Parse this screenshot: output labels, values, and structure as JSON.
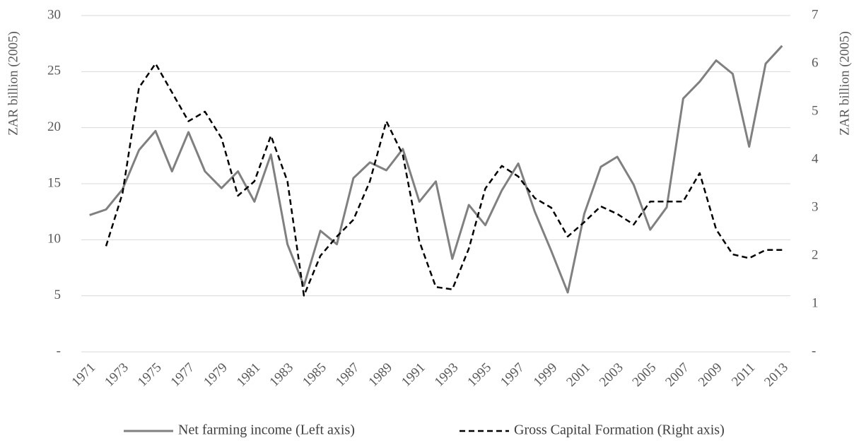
{
  "chart_data": {
    "type": "line",
    "y_label": "ZAR billion (2005)",
    "y2_label": "ZAR billion (2005)",
    "categories": [
      "1971",
      null,
      "1973",
      null,
      "1975",
      null,
      "1977",
      null,
      "1979",
      null,
      "1981",
      null,
      "1983",
      null,
      "1985",
      null,
      "1987",
      null,
      "1989",
      null,
      "1991",
      null,
      "1993",
      null,
      "1995",
      null,
      "1997",
      null,
      "1999",
      null,
      "2001",
      null,
      "2003",
      null,
      "2005",
      null,
      "2007",
      null,
      "2009",
      null,
      "2011",
      null,
      "2013"
    ],
    "series": [
      {
        "name": "Net farming income (Left axis)",
        "color": "#808080",
        "dash": false,
        "axis": "y",
        "values": [
          12.2,
          12.7,
          14.5,
          18.0,
          19.7,
          16.1,
          19.6,
          16.1,
          14.6,
          16.1,
          13.4,
          17.6,
          9.6,
          5.9,
          10.8,
          9.6,
          15.5,
          16.9,
          16.2,
          18.1,
          13.4,
          15.2,
          8.3,
          13.1,
          11.3,
          14.4,
          16.8,
          12.5,
          9.0,
          5.3,
          12.3,
          16.5,
          17.4,
          14.9,
          10.9,
          12.9,
          22.6,
          24.1,
          26.0,
          24.8,
          18.3,
          25.7,
          27.3
        ]
      },
      {
        "name": "Gross Capital Formation (Right axis)",
        "color": "#000000",
        "dash": true,
        "axis": "y2",
        "values": [
          null,
          2.2,
          3.3,
          5.5,
          6.0,
          5.4,
          4.8,
          5.0,
          4.45,
          3.25,
          3.55,
          4.5,
          3.55,
          1.17,
          2.0,
          2.4,
          2.75,
          3.55,
          4.8,
          4.1,
          2.3,
          1.35,
          1.3,
          2.15,
          3.4,
          3.87,
          3.65,
          3.2,
          3.0,
          2.4,
          2.7,
          3.03,
          2.87,
          2.65,
          3.13,
          3.13,
          3.13,
          3.72,
          2.55,
          2.03,
          1.95,
          2.12,
          2.12
        ]
      }
    ],
    "ylim": [
      0,
      30
    ],
    "yticks": [
      {
        "value": 0,
        "label": "-"
      },
      5,
      10,
      15,
      20,
      25,
      30
    ],
    "y2lim": [
      0,
      7
    ],
    "y2ticks": [
      {
        "value": 0,
        "label": "-"
      },
      1,
      2,
      3,
      4,
      5,
      6,
      7
    ],
    "grid": true,
    "legend": "bottom"
  }
}
